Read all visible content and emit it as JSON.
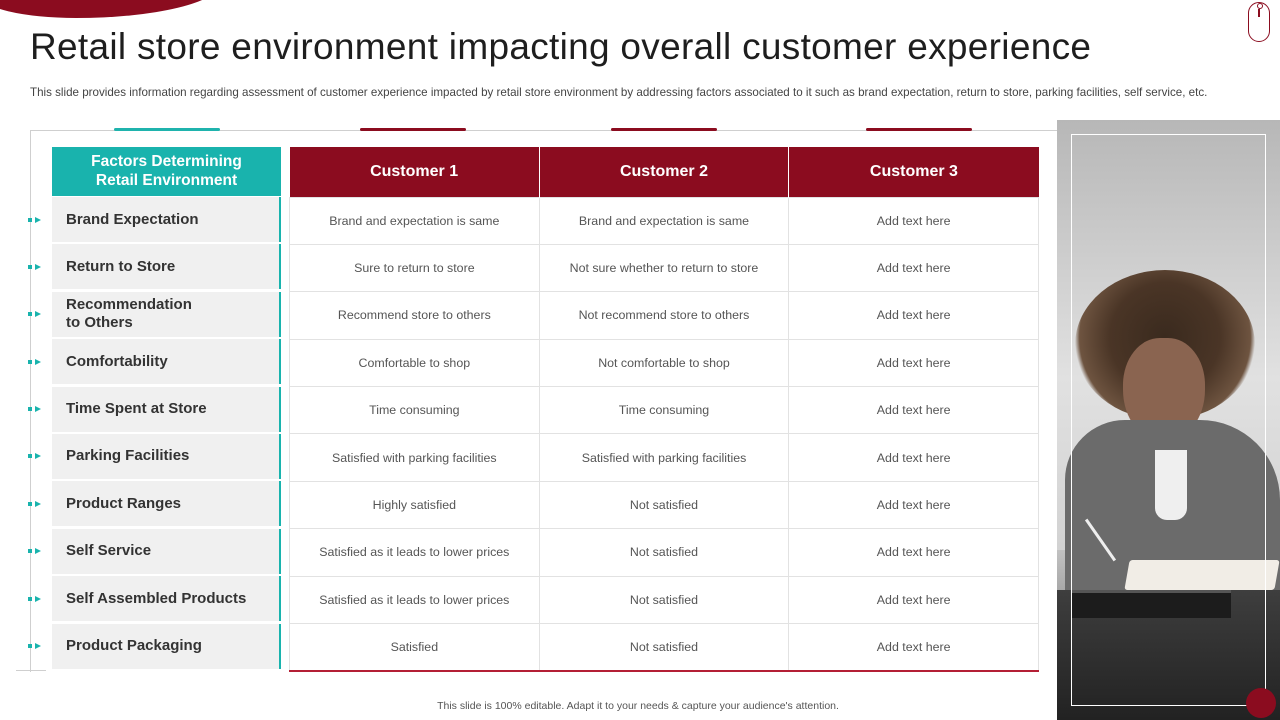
{
  "header": {
    "title": "Retail store environment impacting overall customer experience",
    "subtitle": "This slide provides information regarding assessment of customer experience impacted by retail store environment by addressing factors associated to it such as brand expectation, return to store, parking facilities, self service, etc."
  },
  "factors": {
    "header_line1": "Factors Determining",
    "header_line2": "Retail Environment",
    "items": [
      "Brand Expectation",
      "Return to Store",
      "Recommendation to Others",
      "Comfortability",
      "Time Spent at Store",
      "Parking Facilities",
      "Product Ranges",
      "Self Service",
      "Self Assembled Products",
      "Product Packaging"
    ]
  },
  "table": {
    "headers": [
      "Customer 1",
      "Customer 2",
      "Customer 3"
    ],
    "rows": [
      [
        "Brand and expectation is same",
        "Brand and expectation is same",
        "Add text here"
      ],
      [
        "Sure to return to store",
        "Not sure whether to return to store",
        "Add text here"
      ],
      [
        "Recommend store to others",
        "Not recommend store to others",
        "Add text here"
      ],
      [
        "Comfortable to shop",
        "Not comfortable to shop",
        "Add text here"
      ],
      [
        "Time consuming",
        "Time consuming",
        "Add text here"
      ],
      [
        "Satisfied with parking facilities",
        "Satisfied with parking facilities",
        "Add text here"
      ],
      [
        "Highly satisfied",
        "Not satisfied",
        "Add text here"
      ],
      [
        "Satisfied as it leads to lower prices",
        "Not satisfied",
        "Add text here"
      ],
      [
        "Satisfied as it leads to lower prices",
        "Not satisfied",
        "Add text here"
      ],
      [
        "Satisfied",
        "Not satisfied",
        "Add text here"
      ]
    ]
  },
  "footer": {
    "text": "This slide is 100% editable.  Adapt it to your needs & capture your audience's attention."
  },
  "colors": {
    "accent_red": "#8b0c1f",
    "accent_teal": "#19b3ad"
  },
  "icons": [
    "mouse-icon",
    "arrow-marker-icon"
  ]
}
